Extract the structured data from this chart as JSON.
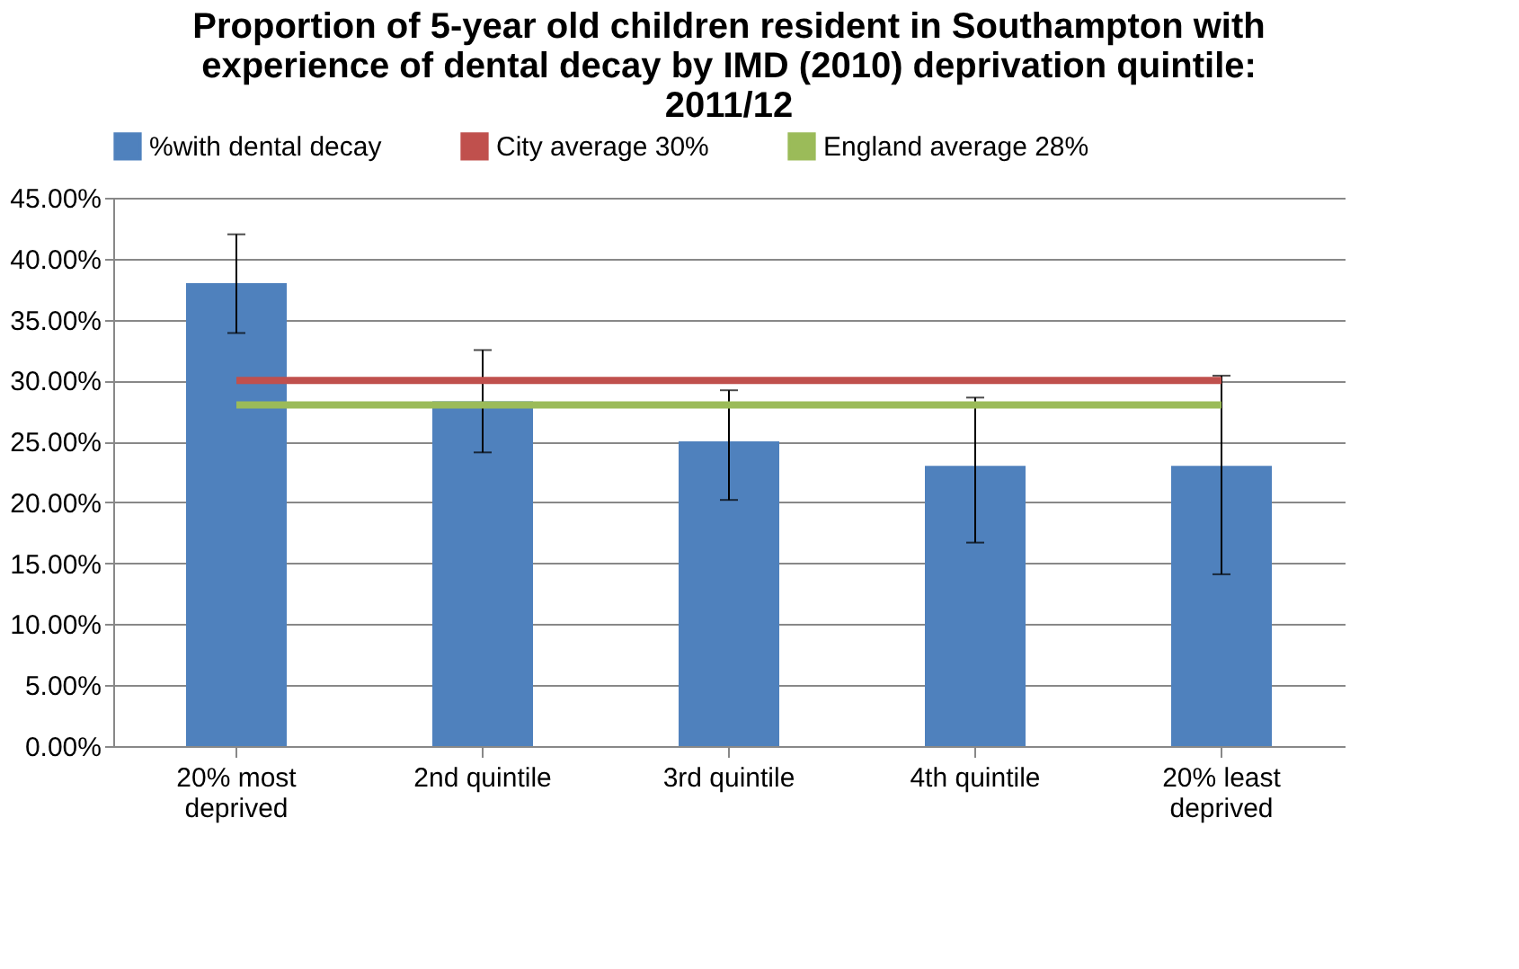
{
  "chart_data": {
    "type": "bar",
    "title": "Proportion of 5-year old children resident in Southampton with experience of dental decay by IMD (2010) deprivation quintile: 2011/12",
    "categories": [
      "20% most deprived",
      "2nd quintile",
      "3rd quintile",
      "4th quintile",
      "20% least deprived"
    ],
    "series": [
      {
        "name": "%with dental decay",
        "type": "bar",
        "color": "#4f81bd",
        "values": [
          38,
          28.3,
          25,
          23,
          23
        ],
        "errors": [
          [
            33.9,
            42
          ],
          [
            24.1,
            32.5
          ],
          [
            20.2,
            29.2
          ],
          [
            16.7,
            28.6
          ],
          [
            14.1,
            30.4
          ]
        ]
      },
      {
        "name": "City average 30%",
        "type": "line",
        "color": "#c0504d",
        "values": [
          30,
          30,
          30,
          30,
          30
        ]
      },
      {
        "name": "England average 28%",
        "type": "line",
        "color": "#9bbb59",
        "values": [
          28,
          28,
          28,
          28,
          28
        ]
      }
    ],
    "ylim": [
      0,
      45
    ],
    "yticks": [
      {
        "value": 0,
        "label": "0.00%"
      },
      {
        "value": 5,
        "label": "5.00%"
      },
      {
        "value": 10,
        "label": "10.00%"
      },
      {
        "value": 15,
        "label": "15.00%"
      },
      {
        "value": 20,
        "label": "20.00%"
      },
      {
        "value": 25,
        "label": "25.00%"
      },
      {
        "value": 30,
        "label": "30.00%"
      },
      {
        "value": 35,
        "label": "35.00%"
      },
      {
        "value": 40,
        "label": "40.00%"
      },
      {
        "value": 45,
        "label": "45.00%"
      }
    ],
    "grid": "y",
    "legend": "top"
  }
}
